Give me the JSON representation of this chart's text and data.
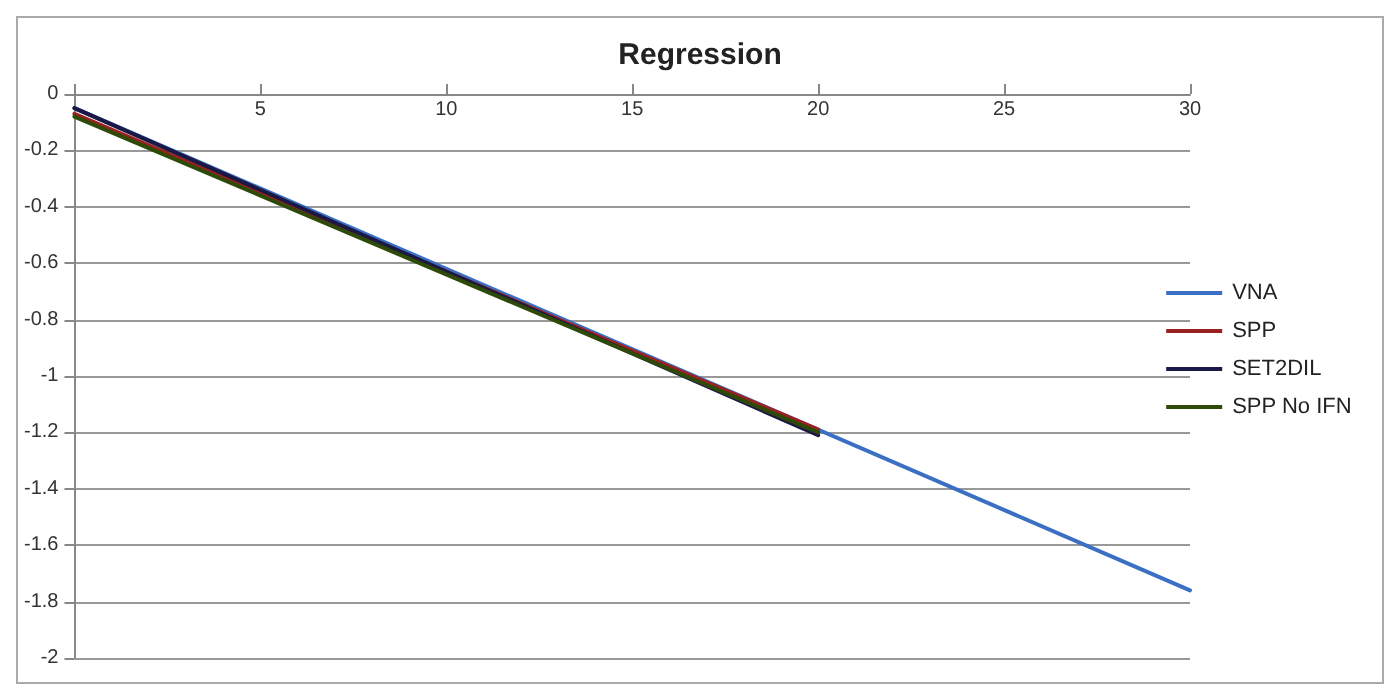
{
  "chart_data": {
    "type": "line",
    "title": "Regression",
    "xlim": [
      0,
      30
    ],
    "xticks": [
      {
        "value": 0,
        "label": null
      },
      5,
      10,
      15,
      20,
      25,
      30
    ],
    "ylim": [
      -2,
      0
    ],
    "yticks": [
      -2,
      -1.8,
      -1.6,
      -1.4,
      -1.2,
      -1,
      -0.8,
      -0.6,
      -0.4,
      -0.2,
      0
    ],
    "series": [
      {
        "name": "VNA",
        "color": "#3a6fc4",
        "x": [
          0,
          30
        ],
        "values": [
          -0.05,
          -1.76
        ]
      },
      {
        "name": "SPP",
        "color": "#9b2020",
        "x": [
          0,
          20
        ],
        "values": [
          -0.07,
          -1.19
        ]
      },
      {
        "name": "SET2DIL",
        "color": "#1c1846",
        "x": [
          0,
          20
        ],
        "values": [
          -0.05,
          -1.21
        ]
      },
      {
        "name": "SPP No IFN",
        "color": "#2e4a08",
        "x": [
          0,
          20
        ],
        "values": [
          -0.08,
          -1.2
        ]
      }
    ],
    "grid": "y",
    "legend": "right",
    "marker": "none",
    "line_style": "solid"
  }
}
